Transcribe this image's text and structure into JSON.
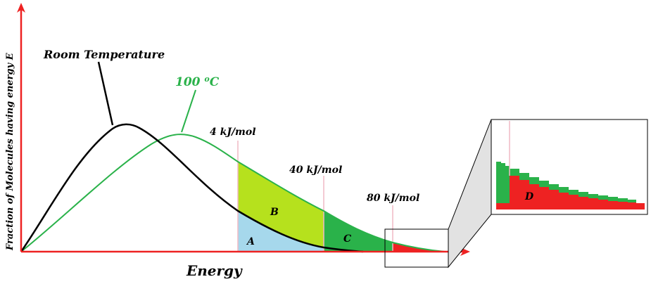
{
  "diagram": {
    "y_axis_label": "Fraction of Molecules having energy E",
    "x_axis_label": "Energy",
    "curves": {
      "room": {
        "label": "Room Temperature",
        "color": "#000000"
      },
      "hot": {
        "label": "100 °C",
        "label_main": "100 ",
        "label_sup": "o",
        "label_unit": "C",
        "color": "#2ab24a"
      }
    },
    "thresholds": [
      {
        "label": "4 kJ/mol"
      },
      {
        "label": "40 kJ/mol"
      },
      {
        "label": "80 kJ/mol"
      }
    ],
    "regions": {
      "A": {
        "label": "A",
        "color": "#a6d8ec"
      },
      "B": {
        "label": "B",
        "color": "#b6e11d"
      },
      "C": {
        "label": "C",
        "color": "#2ab24a"
      },
      "D": {
        "label": "D",
        "color": "#ee2222"
      }
    },
    "axis_color": "#ee2222",
    "marker_color": "#f0b8c4"
  }
}
